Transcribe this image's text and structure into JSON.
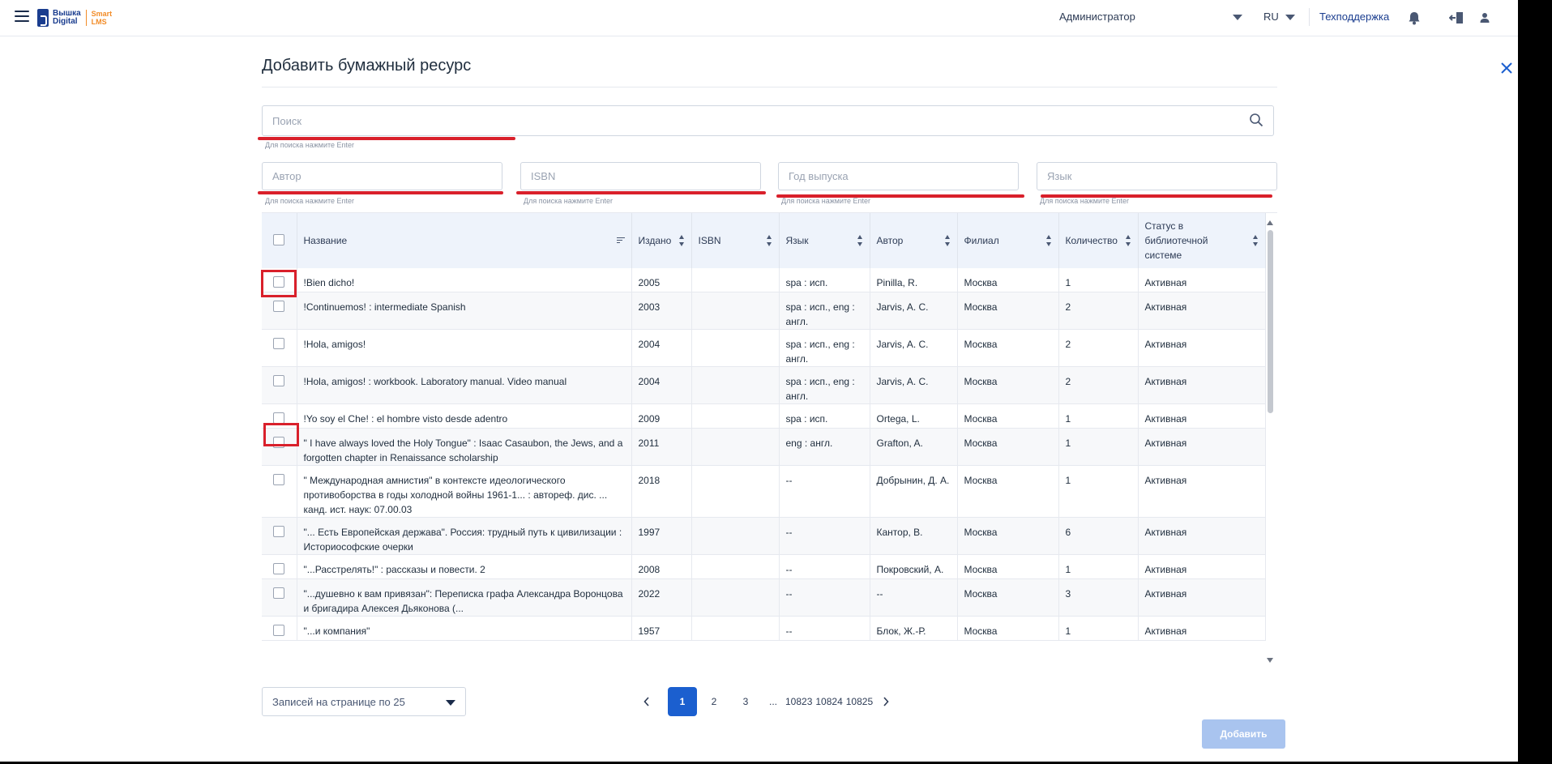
{
  "topbar": {
    "logo_line1": "Вышка",
    "logo_line2": "Digital",
    "logo_smart": "Smart",
    "logo_lms": "LMS",
    "user_role": "Администратор",
    "language": "RU",
    "support": "Техподдержка"
  },
  "dialog": {
    "title": "Добавить бумажный ресурс"
  },
  "filters": {
    "search_placeholder": "Поиск",
    "search_hint": "Для поиска нажмите Enter",
    "author_placeholder": "Автор",
    "isbn_placeholder": "ISBN",
    "year_placeholder": "Год выпуска",
    "language_placeholder": "Язык",
    "hint": "Для поиска нажмите Enter"
  },
  "table": {
    "headers": {
      "title": "Название",
      "published": "Издано",
      "isbn": "ISBN",
      "language": "Язык",
      "author": "Автор",
      "branch": "Филиал",
      "quantity": "Количество",
      "status": "Статус в библиотечной системе"
    },
    "rows": [
      {
        "title": "!Bien dicho!",
        "published": "2005",
        "isbn": "",
        "language": "spa : исп.",
        "author": "Pinilla, R.",
        "branch": "Москва",
        "quantity": "1",
        "status": "Активная"
      },
      {
        "title": "!Continuemos! : intermediate Spanish",
        "published": "2003",
        "isbn": "",
        "language": "spa : исп., eng : англ.",
        "author": "Jarvis, A. C.",
        "branch": "Москва",
        "quantity": "2",
        "status": "Активная"
      },
      {
        "title": "!Hola, amigos!",
        "published": "2004",
        "isbn": "",
        "language": "spa : исп., eng : англ.",
        "author": "Jarvis, A. C.",
        "branch": "Москва",
        "quantity": "2",
        "status": "Активная"
      },
      {
        "title": "!Hola, amigos! : workbook. Laboratory manual. Video manual",
        "published": "2004",
        "isbn": "",
        "language": "spa : исп., eng : англ.",
        "author": "Jarvis, A. C.",
        "branch": "Москва",
        "quantity": "2",
        "status": "Активная"
      },
      {
        "title": "!Yo soy el Che! : el hombre visto desde adentro",
        "published": "2009",
        "isbn": "",
        "language": "spa : исп.",
        "author": "Ortega, L.",
        "branch": "Москва",
        "quantity": "1",
        "status": "Активная"
      },
      {
        "title": "\" I have always loved the Holy Tongue\" : Isaac Casaubon, the Jews, and a forgotten chapter in Renaissance scholarship",
        "published": "2011",
        "isbn": "",
        "language": "eng : англ.",
        "author": "Grafton, A.",
        "branch": "Москва",
        "quantity": "1",
        "status": "Активная"
      },
      {
        "title": "\" Международная амнистия\" в контексте идеологического противоборства в годы холодной войны 1961-1... : автореф. дис. ... канд. ист. наук: 07.00.03",
        "published": "2018",
        "isbn": "",
        "language": "--",
        "author": "Добрынин, Д. А.",
        "branch": "Москва",
        "quantity": "1",
        "status": "Активная"
      },
      {
        "title": "\"... Есть Европейская держава\". Россия: трудный путь к цивилизации : Историософские очерки",
        "published": "1997",
        "isbn": "",
        "language": "--",
        "author": "Кантор, В.",
        "branch": "Москва",
        "quantity": "6",
        "status": "Активная"
      },
      {
        "title": "\"...Расстрелять!\" : рассказы и повести. 2",
        "published": "2008",
        "isbn": "",
        "language": "--",
        "author": "Покровский, А.",
        "branch": "Москва",
        "quantity": "1",
        "status": "Активная"
      },
      {
        "title": "\"...душевно к вам привязан\": Переписка графа Александра Воронцова и бригадира Алексея Дьяконова (...",
        "published": "2022",
        "isbn": "",
        "language": "--",
        "author": "--",
        "branch": "Москва",
        "quantity": "3",
        "status": "Активная"
      },
      {
        "title": "\"...и компания\"",
        "published": "1957",
        "isbn": "",
        "language": "--",
        "author": "Блок, Ж.-Р.",
        "branch": "Москва",
        "quantity": "1",
        "status": "Активная"
      }
    ]
  },
  "footer": {
    "per_page": "Записей на странице по 25",
    "pages": [
      "1",
      "2",
      "3",
      "...",
      "10823",
      "10824",
      "10825"
    ],
    "add_button": "Добавить"
  },
  "colors": {
    "accent": "#1b5fcf",
    "annotation_red": "#d9202b",
    "header_bg": "#eef3fb"
  }
}
